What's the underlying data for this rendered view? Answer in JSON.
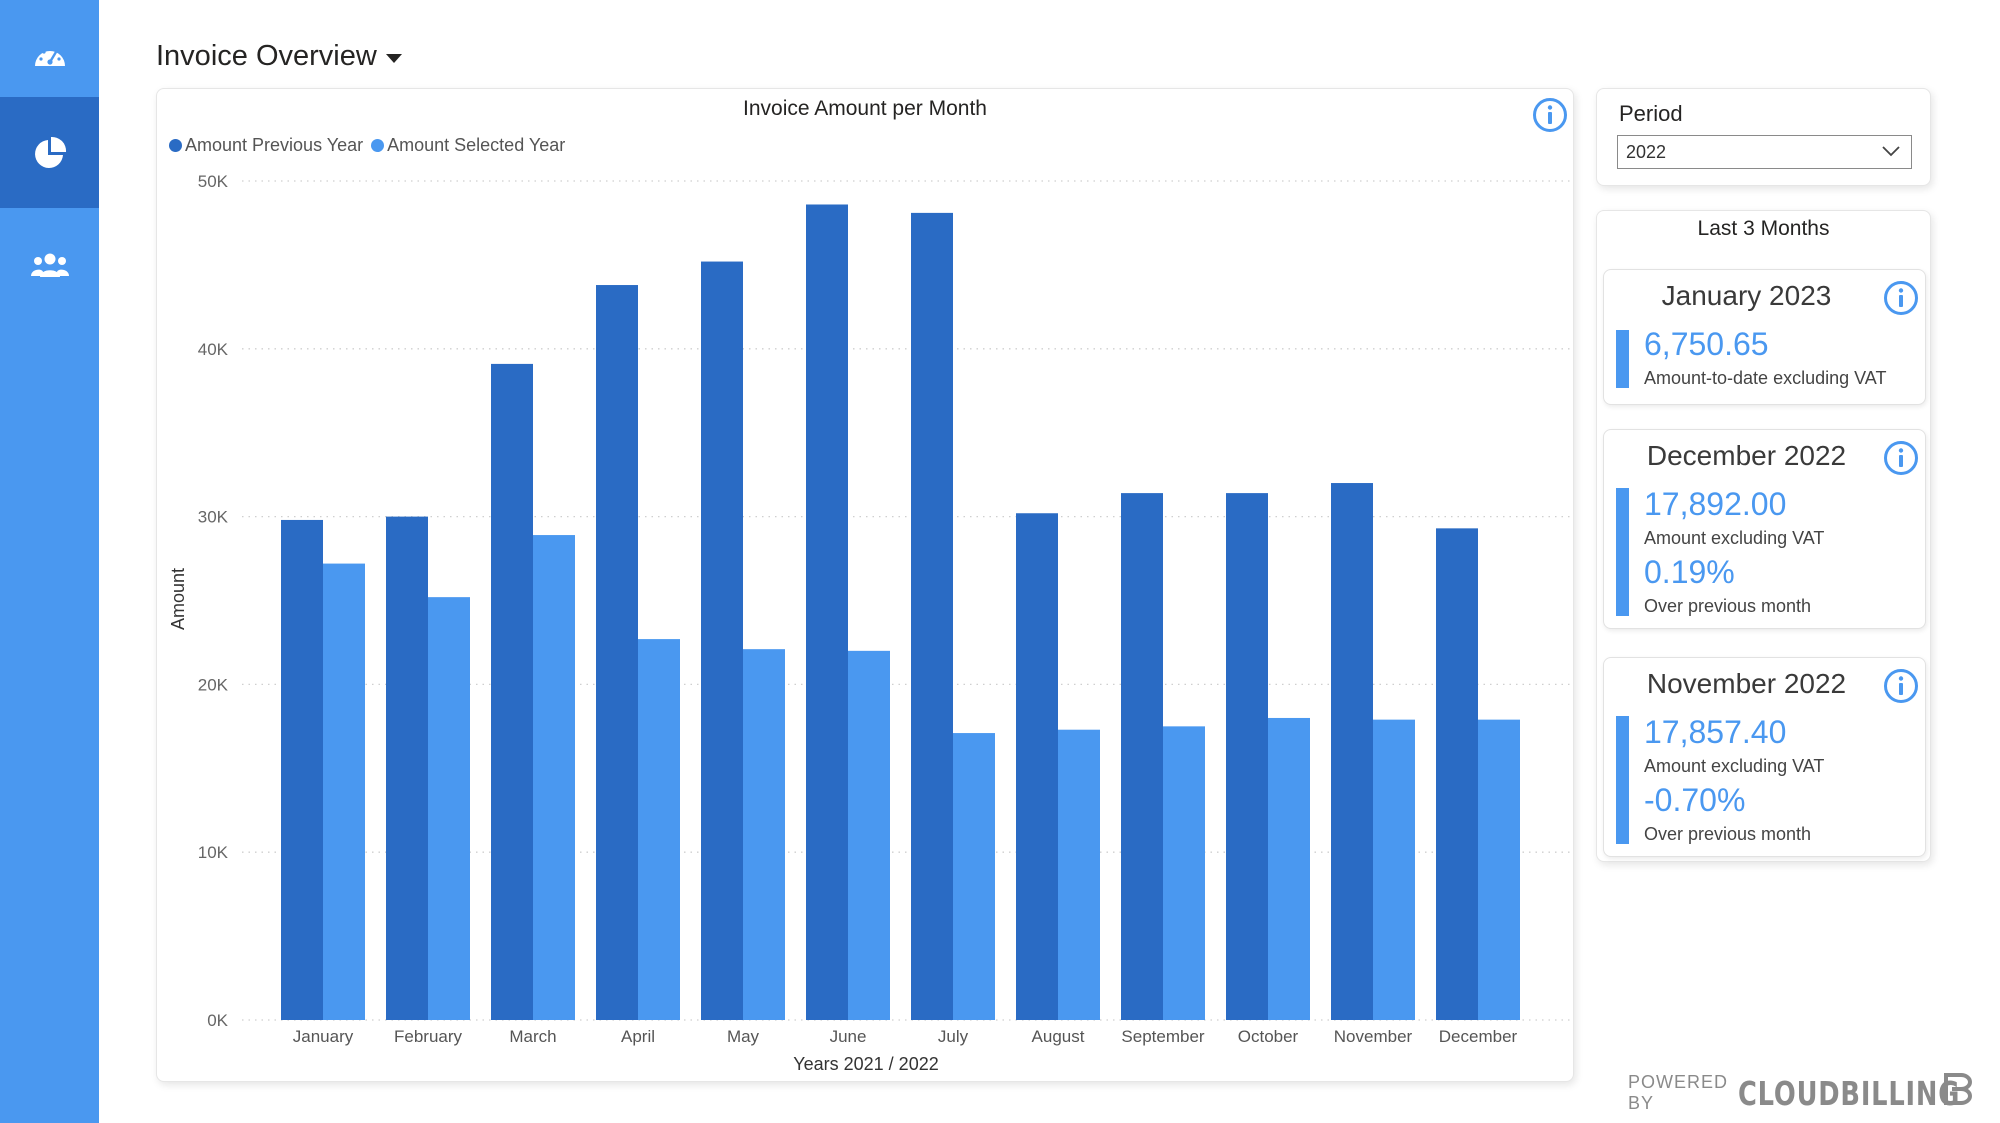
{
  "sidebar": {
    "items": [
      {
        "icon": "dashboard-gauge-icon",
        "active": false
      },
      {
        "icon": "pie-chart-icon",
        "active": true
      },
      {
        "icon": "users-group-icon",
        "active": false
      }
    ]
  },
  "header": {
    "title": "Invoice Overview"
  },
  "chart": {
    "title": "Invoice Amount per Month"
  },
  "chart_data": {
    "type": "bar",
    "title": "Invoice Amount per Month",
    "xlabel": "Years 2021 / 2022",
    "ylabel": "Amount",
    "categories": [
      "January",
      "February",
      "March",
      "April",
      "May",
      "June",
      "July",
      "August",
      "September",
      "October",
      "November",
      "December"
    ],
    "series": [
      {
        "name": "Amount Previous Year",
        "color": "#2a6bc4",
        "values": [
          29800,
          30000,
          39100,
          43800,
          45200,
          48600,
          48100,
          30200,
          31400,
          31400,
          32000,
          29300
        ]
      },
      {
        "name": "Amount Selected Year",
        "color": "#4a98f0",
        "values": [
          27200,
          25200,
          28900,
          22700,
          22100,
          22000,
          17100,
          17300,
          17500,
          18000,
          17900,
          17900
        ]
      }
    ],
    "yticks": [
      "0K",
      "10K",
      "20K",
      "30K",
      "40K",
      "50K"
    ],
    "ylim": [
      0,
      50000
    ],
    "grid": true,
    "legend": "top-left"
  },
  "period": {
    "label": "Period",
    "selected": "2022"
  },
  "last_months": {
    "title": "Last 3 Months",
    "items": [
      {
        "title": "January 2023",
        "value": "6,750.65",
        "label": "Amount-to-date excluding VAT"
      },
      {
        "title": "December 2022",
        "value": "17,892.00",
        "label": "Amount excluding VAT",
        "change": "0.19%",
        "change_label": "Over previous month"
      },
      {
        "title": "November 2022",
        "value": "17,857.40",
        "label": "Amount excluding VAT",
        "change": "-0.70%",
        "change_label": "Over previous month"
      }
    ]
  },
  "footer": {
    "powered_by": "POWERED BY",
    "brand": "CLOUDBILLING"
  }
}
